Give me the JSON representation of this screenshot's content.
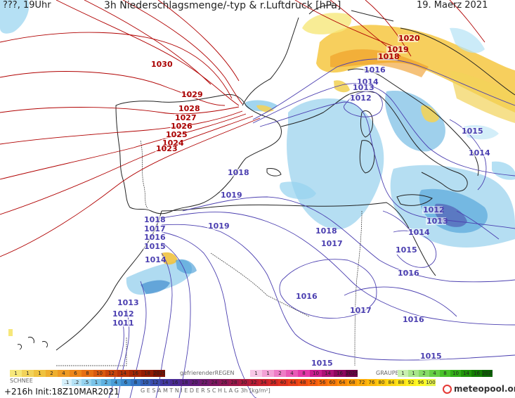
{
  "header": {
    "left_label": "???, 19Uhr",
    "title": "3h Niederschlagsmenge/-typ & r.Luftdruck [hPa]",
    "date": "19. Maerz 2021"
  },
  "isobar_labels": [
    {
      "text": "1030",
      "color": "#aa0000"
    },
    {
      "text": "1029",
      "color": "#aa0000"
    },
    {
      "text": "1028",
      "color": "#aa0000"
    },
    {
      "text": "1027",
      "color": "#aa0000"
    },
    {
      "text": "1026",
      "color": "#aa0000"
    },
    {
      "text": "1025",
      "color": "#aa0000"
    },
    {
      "text": "1024",
      "color": "#aa0000"
    },
    {
      "text": "1023",
      "color": "#aa0000"
    },
    {
      "text": "1020",
      "color": "#aa0000"
    },
    {
      "text": "1019",
      "color": "#aa0000"
    },
    {
      "text": "1018",
      "color": "#aa0000"
    },
    {
      "text": "1016",
      "color": "#4b3fb0"
    },
    {
      "text": "1014",
      "color": "#4b3fb0"
    },
    {
      "text": "1013",
      "color": "#4b3fb0"
    },
    {
      "text": "1012",
      "color": "#4b3fb0"
    },
    {
      "text": "1015",
      "color": "#4b3fb0"
    },
    {
      "text": "1014",
      "color": "#4b3fb0"
    },
    {
      "text": "1018",
      "color": "#4b3fb0"
    },
    {
      "text": "1019",
      "color": "#4b3fb0"
    },
    {
      "text": "1012",
      "color": "#4b3fb0"
    },
    {
      "text": "1013",
      "color": "#4b3fb0"
    },
    {
      "text": "1014",
      "color": "#4b3fb0"
    },
    {
      "text": "1015",
      "color": "#4b3fb0"
    },
    {
      "text": "1016",
      "color": "#4b3fb0"
    },
    {
      "text": "1018",
      "color": "#4b3fb0"
    },
    {
      "text": "1017",
      "color": "#4b3fb0"
    },
    {
      "text": "1019",
      "color": "#4b3fb0"
    },
    {
      "text": "1018",
      "color": "#4b3fb0"
    },
    {
      "text": "1017",
      "color": "#4b3fb0"
    },
    {
      "text": "1016",
      "color": "#4b3fb0"
    },
    {
      "text": "1015",
      "color": "#4b3fb0"
    },
    {
      "text": "1014",
      "color": "#4b3fb0"
    },
    {
      "text": "1013",
      "color": "#4b3fb0"
    },
    {
      "text": "1012",
      "color": "#4b3fb0"
    },
    {
      "text": "1011",
      "color": "#4b3fb0"
    },
    {
      "text": "1016",
      "color": "#4b3fb0"
    },
    {
      "text": "1017",
      "color": "#4b3fb0"
    },
    {
      "text": "1016",
      "color": "#4b3fb0"
    },
    {
      "text": "1015",
      "color": "#4b3fb0"
    },
    {
      "text": "1015",
      "color": "#4b3fb0"
    }
  ],
  "legend": {
    "snow_label": "SCHNEE",
    "freezing_rain_label": "gefrierenderREGEN",
    "graupel_label": "GRAUPEL",
    "total_label": "G E S A M T N I E D E R S C H L A G   3h   [kg/m²]",
    "rain_scale": [
      "1",
      "1",
      "1",
      "2",
      "4",
      "6",
      "8",
      "10",
      "12",
      "14",
      "16",
      "18",
      "2025+"
    ],
    "freezing_scale": [
      "1",
      "1",
      "2",
      "4",
      "8",
      "10",
      "14",
      "16",
      "2025+"
    ],
    "graupel_scale": [
      "1",
      "1",
      "2",
      "4",
      "8",
      "10",
      "14",
      "16",
      "2025+"
    ],
    "total_scale": [
      ".1",
      ".2",
      ".5",
      "1",
      "2",
      "4",
      "6",
      "8",
      "10",
      "12",
      "14",
      "16",
      "18",
      "20",
      "22",
      "24",
      "26",
      "28",
      "30",
      "32",
      "34",
      "36",
      "40",
      "44",
      "48",
      "52",
      "56",
      "60",
      "64",
      "68",
      "72",
      "76",
      "80",
      "84",
      "88",
      "92",
      "96",
      "100"
    ],
    "colors": {
      "rain": [
        "#f6e77a",
        "#f2d35a",
        "#efc23f",
        "#eeae2e",
        "#ee9a22",
        "#ee8618",
        "#e66f12",
        "#d9590e",
        "#c8440b",
        "#b83308",
        "#a52606",
        "#921b04",
        "#7d1202"
      ],
      "freezing": [
        "#f8c6e6",
        "#f3a1d6",
        "#ee7cc6",
        "#e958b7",
        "#e436a8",
        "#c91d8e",
        "#ab1175",
        "#8c075d",
        "#6e0046"
      ],
      "graupel": [
        "#c8f0b0",
        "#a7e68a",
        "#86dc66",
        "#66d045",
        "#48c22a",
        "#32ad18",
        "#209409",
        "#137c02",
        "#0b6500"
      ],
      "total": [
        "#d6f0fb",
        "#b5e2f5",
        "#95d3ef",
        "#79c3e8",
        "#5fb1e0",
        "#4a9ed7",
        "#3b89cd",
        "#3474c3",
        "#3460b8",
        "#3a4cad",
        "#4239a1",
        "#4a2a94",
        "#542087",
        "#611b7a",
        "#70186d",
        "#7e1661",
        "#8d1656",
        "#9c174b",
        "#ab1940",
        "#ba1c36",
        "#c8212d",
        "#d52825",
        "#e0321e",
        "#e93f18",
        "#f04d13",
        "#f55c0f",
        "#f86c0c",
        "#fa7c0a",
        "#fb8c09",
        "#fc9c09",
        "#fdab0a",
        "#feba0c",
        "#fec90f",
        "#fed713",
        "#fee418",
        "#fef01e",
        "#fefa26",
        "#e8f54a"
      ]
    }
  },
  "footer": {
    "run_info": "+216h Init:18Z10MAR2021",
    "brand": "meteopool.org"
  }
}
